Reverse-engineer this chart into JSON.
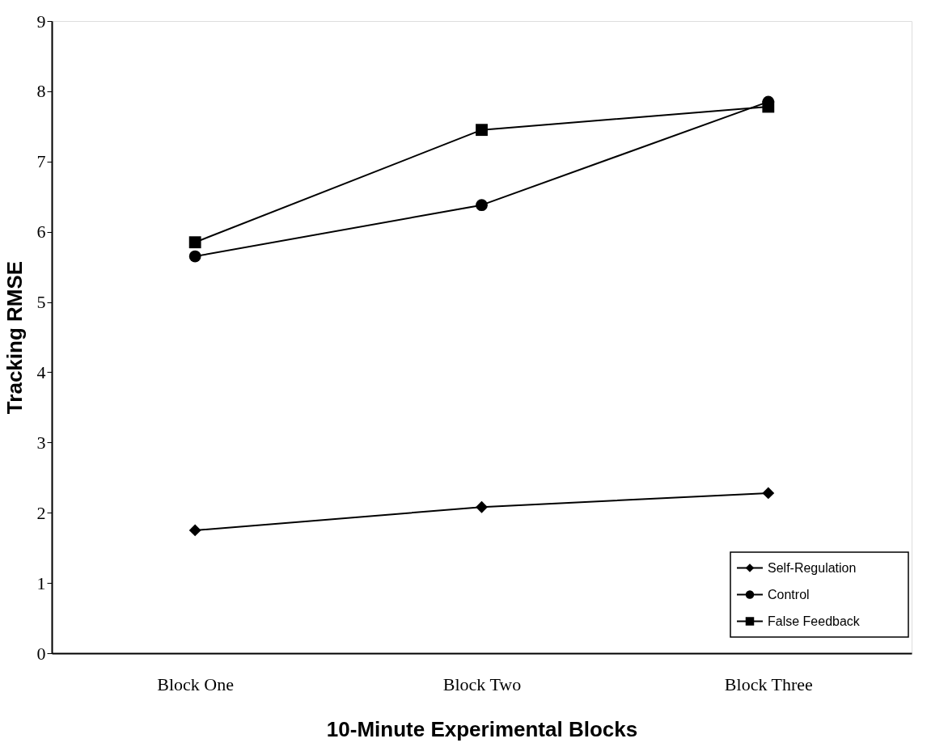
{
  "chart_data": {
    "type": "line",
    "xlabel": "10-Minute Experimental Blocks",
    "ylabel": "Tracking RMSE",
    "categories": [
      "Block One",
      "Block Two",
      "Block Three"
    ],
    "series": [
      {
        "name": "Self-Regulation",
        "color": "#000000",
        "marker": "diamond",
        "values": [
          1.75,
          2.08,
          2.28
        ]
      },
      {
        "name": "Control",
        "color": "#000000",
        "marker": "circle",
        "values": [
          5.65,
          6.38,
          7.85
        ]
      },
      {
        "name": "False Feedback",
        "color": "#000000",
        "marker": "square",
        "values": [
          5.85,
          7.45,
          7.78
        ]
      }
    ],
    "ylim": [
      0,
      9
    ],
    "yticks": [
      0,
      1,
      2,
      3,
      4,
      5,
      6,
      7,
      8,
      9
    ],
    "grid": false,
    "legend": "bottom right",
    "line_style": "solid"
  }
}
